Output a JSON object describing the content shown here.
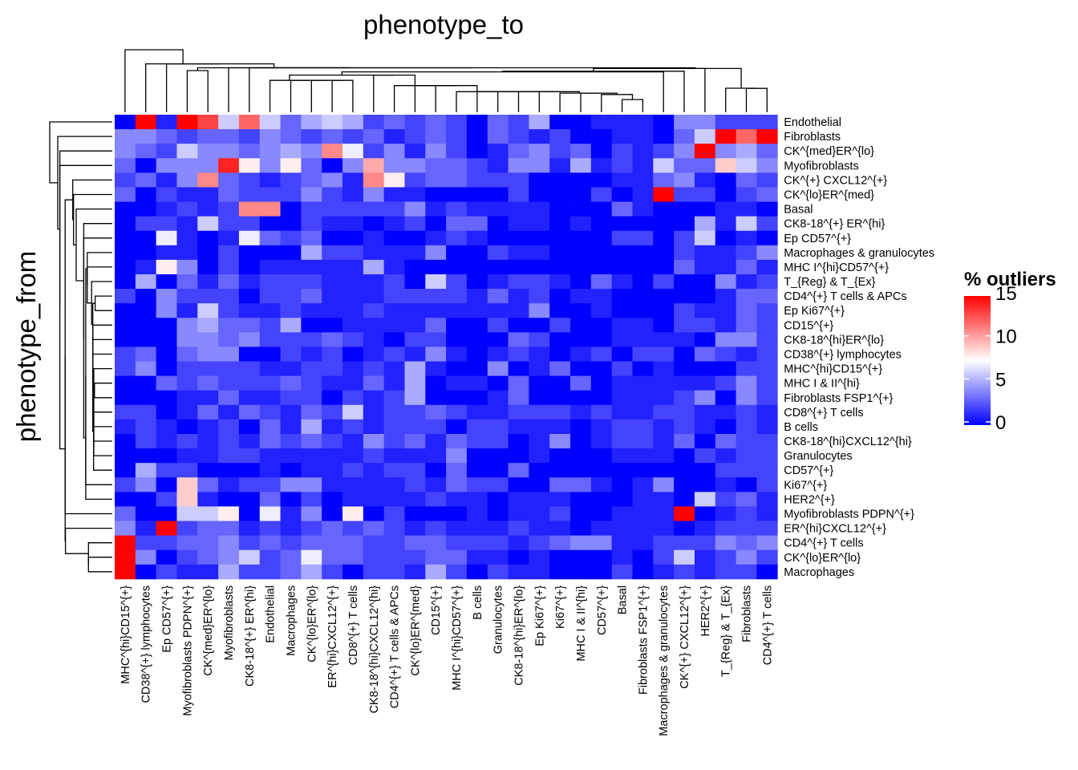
{
  "chart_data": {
    "type": "heatmap",
    "title": "phenotype_to",
    "ylabel": "phenotype_from",
    "legend_title": "% outliers",
    "legend_ticks": [
      0,
      5,
      10,
      15
    ],
    "color_scale": {
      "min": 0,
      "mid": 7.5,
      "max": 15,
      "low": "#0000FF",
      "midcolor": "#FFFFFF",
      "high": "#FF0000"
    },
    "legend_position": "right",
    "columns": [
      "MHC^{hi}CD15^{+}",
      "CD38^{+} lymphocytes",
      "Ep CD57^{+}",
      "Myofibroblasts PDPN^{+}",
      "CK^{med}ER^{lo}",
      "Myofibroblasts",
      "CK8-18^{+} ER^{hi}",
      "Endothelial",
      "Macrophages",
      "CK^{lo}ER^{lo}",
      "ER^{hi}CXCL12^{+}",
      "CD8^{+} T cells",
      "CK8-18^{hi}CXCL12^{hi}",
      "CD4^{+} T cells & APCs",
      "CK^{lo}ER^{med}",
      "CD15^{+}",
      "MHC I^{hi}CD57^{+}",
      "B cells",
      "Granulocytes",
      "CK8-18^{hi}ER^{lo}",
      "Ep Ki67^{+}",
      "Ki67^{+}",
      "MHC I & II^{hi}",
      "CD57^{+}",
      "Basal",
      "Fibroblasts FSP1^{+}",
      "Macrophages & granulocytes",
      "CK^{+} CXCL12^{+}",
      "HER2^{+}",
      "T_{Reg} & T_{Ex}",
      "Fibroblasts",
      "CD4^{+} T cells"
    ],
    "rows": [
      "Endothelial",
      "Fibroblasts",
      "CK^{med}ER^{lo}",
      "Myofibroblasts",
      "CK^{+} CXCL12^{+}",
      "CK^{lo}ER^{med}",
      "Basal",
      "CK8-18^{+} ER^{hi}",
      "Ep CD57^{+}",
      "Macrophages & granulocytes",
      "MHC I^{hi}CD57^{+}",
      "T_{Reg} & T_{Ex}",
      "CD4^{+} T cells & APCs",
      "Ep Ki67^{+}",
      "CD15^{+}",
      "CK8-18^{hi}ER^{lo}",
      "CD38^{+} lymphocytes",
      "MHC^{hi}CD15^{+}",
      "MHC I & II^{hi}",
      "Fibroblasts FSP1^{+}",
      "CD8^{+} T cells",
      "B cells",
      "CK8-18^{hi}CXCL12^{hi}",
      "Granulocytes",
      "CD57^{+}",
      "Ki67^{+}",
      "HER2^{+}",
      "Myofibroblasts PDPN^{+}",
      "ER^{hi}CXCL12^{+}",
      "CD4^{+} T cells",
      "CK^{lo}ER^{lo}",
      "Macrophages"
    ],
    "values": [
      [
        0,
        15,
        1,
        15,
        13,
        6,
        12,
        6,
        3,
        5,
        6,
        5,
        2,
        3,
        2,
        3,
        2,
        0,
        3,
        2,
        5,
        0,
        0,
        1,
        1,
        1,
        0,
        4,
        4,
        2,
        2,
        2
      ],
      [
        4,
        4,
        3,
        2,
        3,
        3,
        2,
        4,
        3,
        2,
        3,
        2,
        3,
        1,
        2,
        3,
        2,
        0,
        3,
        2,
        1,
        2,
        0,
        0,
        1,
        1,
        0,
        3,
        6,
        15,
        12,
        15
      ],
      [
        4,
        3,
        2,
        6,
        4,
        4,
        3,
        4,
        5,
        4,
        11,
        7,
        2,
        4,
        1,
        4,
        2,
        0,
        1,
        3,
        4,
        2,
        3,
        0,
        2,
        1,
        2,
        4,
        15,
        4,
        5,
        3
      ],
      [
        3,
        0,
        4,
        4,
        4,
        14,
        8,
        4,
        8,
        3,
        0,
        4,
        10,
        4,
        4,
        3,
        3,
        2,
        1,
        4,
        4,
        1,
        5,
        1,
        2,
        1,
        6,
        3,
        3,
        9,
        6,
        4
      ],
      [
        2,
        3,
        1,
        4,
        11,
        3,
        2,
        1,
        2,
        3,
        4,
        1,
        11,
        8,
        2,
        3,
        3,
        2,
        2,
        2,
        0,
        0,
        0,
        0,
        1,
        1,
        3,
        4,
        1,
        0,
        3,
        2
      ],
      [
        3,
        0,
        2,
        1,
        1,
        3,
        2,
        2,
        2,
        4,
        2,
        1,
        4,
        1,
        1,
        0,
        0,
        0,
        0,
        2,
        0,
        0,
        0,
        2,
        0,
        1,
        15,
        2,
        2,
        0,
        2,
        3
      ],
      [
        0,
        0,
        1,
        2,
        1,
        2,
        11,
        11,
        0,
        2,
        2,
        2,
        2,
        2,
        4,
        1,
        2,
        1,
        1,
        1,
        1,
        0,
        0,
        0,
        3,
        1,
        0,
        0,
        0,
        1,
        1,
        0
      ],
      [
        0,
        2,
        2,
        1,
        6,
        2,
        2,
        0,
        0,
        2,
        1,
        1,
        0,
        1,
        2,
        0,
        3,
        3,
        0,
        1,
        1,
        0,
        1,
        0,
        0,
        0,
        0,
        0,
        5,
        1,
        6,
        2
      ],
      [
        0,
        0,
        7,
        1,
        0,
        1,
        7,
        3,
        2,
        3,
        0,
        0,
        1,
        0,
        0,
        1,
        2,
        1,
        0,
        0,
        0,
        0,
        0,
        0,
        2,
        2,
        0,
        2,
        6,
        0,
        1,
        0
      ],
      [
        0,
        0,
        1,
        1,
        0,
        2,
        0,
        0,
        0,
        5,
        2,
        2,
        1,
        1,
        1,
        4,
        0,
        0,
        2,
        1,
        1,
        0,
        0,
        0,
        0,
        0,
        0,
        2,
        1,
        1,
        2,
        4
      ],
      [
        0,
        1,
        8,
        4,
        0,
        2,
        0,
        1,
        1,
        1,
        1,
        1,
        5,
        1,
        0,
        0,
        0,
        0,
        0,
        0,
        0,
        0,
        0,
        0,
        0,
        0,
        0,
        3,
        1,
        1,
        3,
        1
      ],
      [
        0,
        5,
        0,
        3,
        1,
        3,
        1,
        2,
        2,
        2,
        1,
        1,
        1,
        2,
        0,
        6,
        2,
        0,
        1,
        2,
        2,
        1,
        0,
        3,
        1,
        0,
        2,
        0,
        0,
        4,
        1,
        2
      ],
      [
        2,
        0,
        4,
        2,
        2,
        2,
        0,
        2,
        2,
        3,
        1,
        1,
        1,
        2,
        2,
        2,
        2,
        1,
        3,
        1,
        2,
        0,
        1,
        1,
        0,
        0,
        0,
        0,
        0,
        1,
        3,
        3
      ],
      [
        0,
        0,
        4,
        1,
        6,
        2,
        1,
        1,
        2,
        1,
        1,
        1,
        2,
        1,
        1,
        1,
        1,
        1,
        1,
        1,
        4,
        0,
        0,
        1,
        0,
        0,
        0,
        2,
        1,
        1,
        3,
        2
      ],
      [
        0,
        0,
        0,
        4,
        5,
        3,
        3,
        2,
        5,
        0,
        0,
        1,
        1,
        1,
        1,
        3,
        0,
        0,
        2,
        0,
        0,
        2,
        0,
        0,
        1,
        1,
        0,
        2,
        2,
        1,
        3,
        2
      ],
      [
        0,
        0,
        0,
        4,
        4,
        3,
        4,
        2,
        2,
        2,
        3,
        2,
        1,
        0,
        2,
        2,
        0,
        0,
        0,
        3,
        2,
        0,
        0,
        0,
        1,
        1,
        1,
        1,
        0,
        4,
        4,
        2
      ],
      [
        2,
        3,
        0,
        3,
        4,
        4,
        0,
        0,
        2,
        1,
        2,
        0,
        1,
        2,
        1,
        4,
        1,
        0,
        1,
        2,
        1,
        0,
        1,
        2,
        0,
        2,
        2,
        0,
        3,
        2,
        1,
        2
      ],
      [
        2,
        4,
        0,
        2,
        2,
        2,
        2,
        1,
        1,
        2,
        2,
        1,
        2,
        1,
        5,
        1,
        0,
        0,
        4,
        0,
        1,
        3,
        0,
        0,
        2,
        0,
        1,
        0,
        0,
        0,
        2,
        2
      ],
      [
        0,
        0,
        3,
        2,
        3,
        2,
        2,
        2,
        3,
        2,
        1,
        1,
        3,
        1,
        5,
        0,
        1,
        1,
        0,
        3,
        0,
        0,
        3,
        0,
        1,
        1,
        1,
        1,
        1,
        2,
        4,
        2
      ],
      [
        0,
        0,
        0,
        1,
        1,
        3,
        1,
        1,
        2,
        2,
        0,
        2,
        1,
        2,
        5,
        0,
        0,
        0,
        1,
        3,
        0,
        0,
        0,
        0,
        1,
        1,
        1,
        2,
        4,
        0,
        4,
        2
      ],
      [
        2,
        2,
        0,
        1,
        3,
        1,
        3,
        2,
        1,
        3,
        2,
        6,
        1,
        2,
        2,
        3,
        2,
        1,
        1,
        2,
        2,
        2,
        1,
        2,
        1,
        1,
        2,
        2,
        1,
        1,
        2,
        1
      ],
      [
        1,
        2,
        1,
        0,
        1,
        2,
        0,
        3,
        1,
        5,
        1,
        2,
        1,
        2,
        2,
        2,
        0,
        2,
        2,
        1,
        1,
        1,
        0,
        1,
        2,
        2,
        1,
        2,
        1,
        0,
        2,
        1
      ],
      [
        0,
        2,
        1,
        2,
        1,
        2,
        1,
        3,
        2,
        3,
        2,
        1,
        4,
        2,
        3,
        1,
        3,
        2,
        2,
        0,
        1,
        4,
        0,
        1,
        2,
        2,
        1,
        3,
        0,
        3,
        2,
        2
      ],
      [
        0,
        0,
        0,
        1,
        1,
        2,
        2,
        1,
        1,
        1,
        1,
        1,
        2,
        1,
        1,
        1,
        4,
        0,
        0,
        0,
        1,
        0,
        0,
        0,
        1,
        1,
        1,
        0,
        2,
        1,
        2,
        2
      ],
      [
        0,
        5,
        2,
        2,
        0,
        0,
        0,
        1,
        0,
        1,
        1,
        2,
        1,
        2,
        2,
        0,
        3,
        0,
        0,
        3,
        0,
        0,
        0,
        0,
        0,
        0,
        0,
        0,
        0,
        2,
        2,
        2
      ],
      [
        2,
        4,
        0,
        9,
        3,
        1,
        2,
        2,
        4,
        4,
        1,
        1,
        1,
        1,
        2,
        1,
        3,
        2,
        2,
        0,
        0,
        3,
        3,
        1,
        0,
        1,
        4,
        0,
        0,
        1,
        0,
        2
      ],
      [
        0,
        0,
        2,
        9,
        1,
        0,
        0,
        3,
        0,
        2,
        0,
        1,
        1,
        1,
        1,
        2,
        1,
        1,
        0,
        1,
        1,
        1,
        0,
        0,
        0,
        1,
        1,
        0,
        6,
        2,
        3,
        1
      ],
      [
        3,
        0,
        0,
        6,
        6,
        8,
        0,
        7,
        1,
        4,
        0,
        8,
        0,
        2,
        0,
        0,
        0,
        1,
        0,
        1,
        1,
        2,
        0,
        0,
        1,
        1,
        1,
        15,
        0,
        1,
        2,
        1
      ],
      [
        4,
        1,
        15,
        2,
        3,
        3,
        1,
        2,
        1,
        2,
        3,
        2,
        3,
        2,
        1,
        2,
        1,
        1,
        1,
        2,
        1,
        1,
        0,
        1,
        1,
        1,
        1,
        0,
        1,
        2,
        2,
        2
      ],
      [
        15,
        2,
        2,
        3,
        3,
        4,
        2,
        3,
        2,
        3,
        3,
        3,
        2,
        2,
        3,
        3,
        2,
        2,
        2,
        1,
        2,
        3,
        4,
        4,
        1,
        1,
        2,
        2,
        2,
        4,
        3,
        4
      ],
      [
        15,
        4,
        0,
        2,
        3,
        4,
        6,
        2,
        3,
        7,
        3,
        3,
        2,
        2,
        2,
        3,
        3,
        1,
        1,
        0,
        1,
        0,
        0,
        0,
        1,
        0,
        2,
        6,
        1,
        2,
        4,
        2
      ],
      [
        15,
        0,
        2,
        1,
        1,
        5,
        2,
        2,
        3,
        5,
        2,
        0,
        2,
        2,
        1,
        5,
        2,
        0,
        2,
        1,
        1,
        0,
        0,
        0,
        2,
        0,
        1,
        2,
        1,
        2,
        2,
        0
      ]
    ],
    "row_order_note": "",
    "grid": false
  }
}
